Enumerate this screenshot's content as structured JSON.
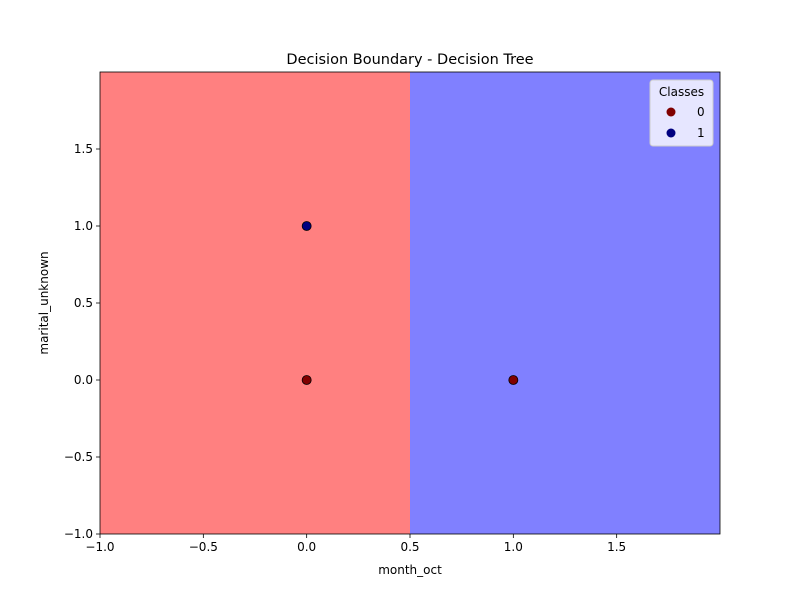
{
  "chart_data": {
    "type": "scatter",
    "title": "Decision Boundary - Decision Tree",
    "xlabel": "month_oct",
    "ylabel": "marital_unknown",
    "xlim": [
      -1.0,
      2.0
    ],
    "ylim": [
      -1.0,
      2.0
    ],
    "x_ticks": [
      -1.0,
      -0.5,
      0.0,
      0.5,
      1.0,
      1.5
    ],
    "x_tick_labels": [
      "−1.0",
      "−0.5",
      "0.0",
      "0.5",
      "1.0",
      "1.5"
    ],
    "y_ticks": [
      -1.0,
      -0.5,
      0.0,
      0.5,
      1.0,
      1.5
    ],
    "y_tick_labels": [
      "−1.0",
      "−0.5",
      "0.0",
      "0.5",
      "1.0",
      "1.5"
    ],
    "grid": false,
    "decision_regions": [
      {
        "class": "0",
        "x_range": [
          -1.0,
          0.5
        ],
        "y_range": [
          -1.0,
          2.0
        ],
        "color": "#ff8080"
      },
      {
        "class": "1",
        "x_range": [
          0.5,
          2.0
        ],
        "y_range": [
          -1.0,
          2.0
        ],
        "color": "#8080ff"
      }
    ],
    "legend": {
      "title": "Classes",
      "placement": "top-right",
      "entries": [
        {
          "label": "0",
          "color": "#800000"
        },
        {
          "label": "1",
          "color": "#000080"
        }
      ]
    },
    "series": [
      {
        "name": "0",
        "color": "#800000",
        "points": [
          {
            "x": 0.0,
            "y": 0.0
          },
          {
            "x": 1.0,
            "y": 0.0
          }
        ]
      },
      {
        "name": "1",
        "color": "#000080",
        "points": [
          {
            "x": 0.0,
            "y": 1.0
          }
        ]
      }
    ]
  }
}
